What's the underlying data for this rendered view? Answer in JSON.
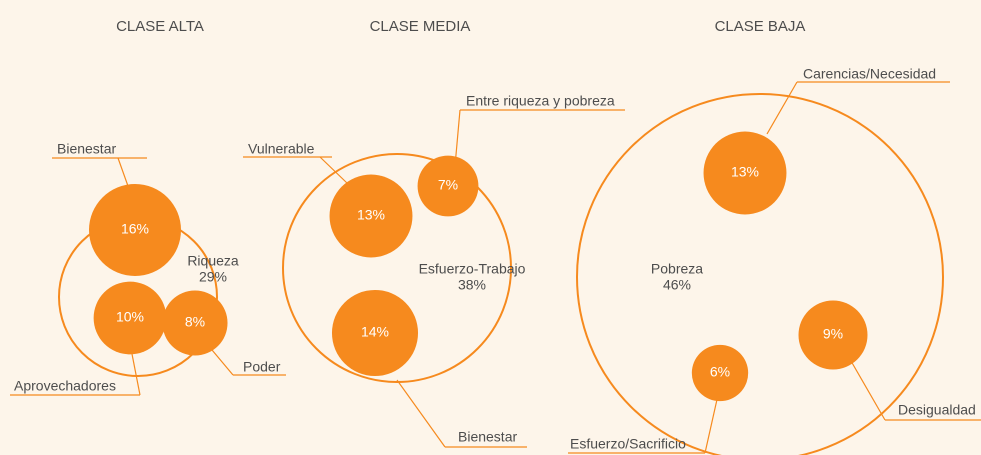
{
  "chart_data": {
    "type": "packed-bubble",
    "color": "#f68a1e",
    "groups": [
      {
        "title": "CLASE ALTA",
        "name": "Riqueza",
        "value": 29,
        "value_label": "29%",
        "items": [
          {
            "name": "Bienestar",
            "value": 16,
            "value_label": "16%"
          },
          {
            "name": "Aprovechadores",
            "value": 10,
            "value_label": "10%"
          },
          {
            "name": "Poder",
            "value": 8,
            "value_label": "8%"
          }
        ]
      },
      {
        "title": "CLASE MEDIA",
        "name": "Esfuerzo-Trabajo",
        "value": 38,
        "value_label": "38%",
        "items": [
          {
            "name": "Vulnerable",
            "value": 13,
            "value_label": "13%"
          },
          {
            "name": "Entre riqueza y pobreza",
            "value": 7,
            "value_label": "7%"
          },
          {
            "name": "Bienestar",
            "value": 14,
            "value_label": "14%"
          }
        ]
      },
      {
        "title": "CLASE BAJA",
        "name": "Pobreza",
        "value": 46,
        "value_label": "46%",
        "items": [
          {
            "name": "Carencias/Necesidad",
            "value": 13,
            "value_label": "13%"
          },
          {
            "name": "Desigualdad",
            "value": 9,
            "value_label": "9%"
          },
          {
            "name": "Esfuerzo/Sacrificio",
            "value": 6,
            "value_label": "6%"
          }
        ]
      }
    ]
  }
}
